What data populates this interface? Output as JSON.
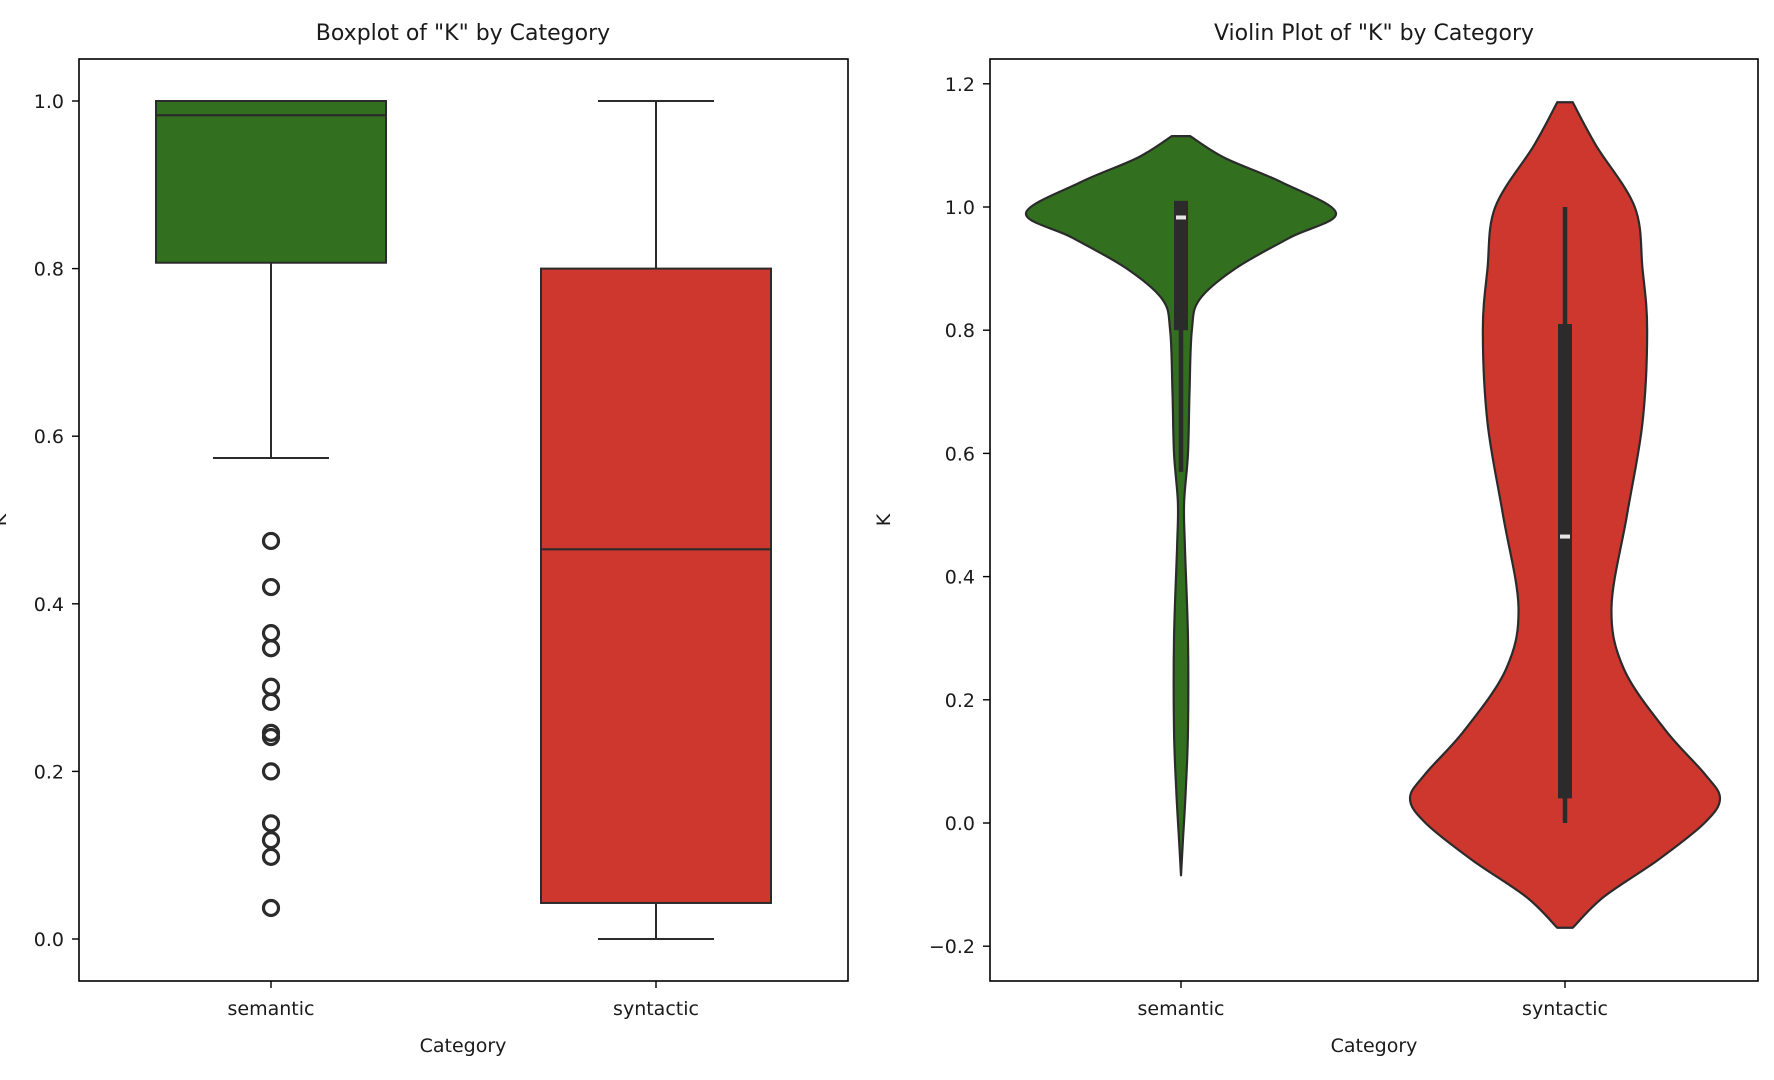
{
  "colors": {
    "semantic": "#32701f",
    "syntactic": "#cd372e",
    "line": "#2b2b2b",
    "axis": "#000000",
    "median_mark": "#e6e6e6"
  },
  "chart_data": [
    {
      "type": "boxplot",
      "title": "Boxplot of \"K\" by Category",
      "xlabel": "Category",
      "ylabel": "K",
      "categories": [
        "semantic",
        "syntactic"
      ],
      "ylim": [
        -0.05,
        1.05
      ],
      "yticks": [
        0.0,
        0.2,
        0.4,
        0.6,
        0.8,
        1.0
      ],
      "ytick_labels": [
        "0.0",
        "0.2",
        "0.4",
        "0.6",
        "0.8",
        "1.0"
      ],
      "grid": false,
      "series": [
        {
          "name": "semantic",
          "whisker_low": 0.574,
          "q1": 0.807,
          "median": 0.983,
          "q3": 1.0,
          "whisker_high": 1.0,
          "outliers": [
            0.475,
            0.42,
            0.365,
            0.347,
            0.301,
            0.283,
            0.246,
            0.241,
            0.2,
            0.138,
            0.118,
            0.098,
            0.037
          ]
        },
        {
          "name": "syntactic",
          "whisker_low": 0.0,
          "q1": 0.043,
          "median": 0.465,
          "q3": 0.8,
          "whisker_high": 1.0,
          "outliers": []
        }
      ]
    },
    {
      "type": "violin",
      "title": "Violin Plot of \"K\" by Category",
      "xlabel": "Category",
      "ylabel": "K",
      "categories": [
        "semantic",
        "syntactic"
      ],
      "ylim": [
        -0.23,
        1.25
      ],
      "yticks": [
        -0.2,
        0.0,
        0.2,
        0.4,
        0.6,
        0.8,
        1.0,
        1.2
      ],
      "ytick_labels": [
        "−0.2",
        "0.0",
        "0.2",
        "0.4",
        "0.6",
        "0.8",
        "1.0",
        "1.2"
      ],
      "grid": false,
      "series": [
        {
          "name": "semantic",
          "kde_range": [
            -0.085,
            1.115
          ],
          "inner_box": {
            "q1": 0.8,
            "median": 0.983,
            "q3": 1.01
          },
          "whisker": [
            0.57,
            1.0
          ],
          "density_profile": [
            [
              1.115,
              0.06
            ],
            [
              1.08,
              0.28
            ],
            [
              1.04,
              0.65
            ],
            [
              0.99,
              1.0
            ],
            [
              0.95,
              0.7
            ],
            [
              0.9,
              0.35
            ],
            [
              0.85,
              0.12
            ],
            [
              0.8,
              0.07
            ],
            [
              0.7,
              0.055
            ],
            [
              0.6,
              0.045
            ],
            [
              0.52,
              0.02
            ],
            [
              0.45,
              0.025
            ],
            [
              0.3,
              0.045
            ],
            [
              0.15,
              0.045
            ],
            [
              0.05,
              0.03
            ],
            [
              -0.03,
              0.012
            ],
            [
              -0.085,
              0.0
            ]
          ]
        },
        {
          "name": "syntactic",
          "kde_range": [
            -0.17,
            1.17
          ],
          "inner_box": {
            "q1": 0.04,
            "median": 0.465,
            "q3": 0.81
          },
          "whisker": [
            0.0,
            1.0
          ],
          "density_profile": [
            [
              1.17,
              0.05
            ],
            [
              1.1,
              0.2
            ],
            [
              1.0,
              0.45
            ],
            [
              0.9,
              0.5
            ],
            [
              0.8,
              0.53
            ],
            [
              0.65,
              0.5
            ],
            [
              0.5,
              0.4
            ],
            [
              0.35,
              0.3
            ],
            [
              0.25,
              0.38
            ],
            [
              0.15,
              0.65
            ],
            [
              0.08,
              0.9
            ],
            [
              0.04,
              1.0
            ],
            [
              0.0,
              0.9
            ],
            [
              -0.06,
              0.6
            ],
            [
              -0.12,
              0.25
            ],
            [
              -0.17,
              0.05
            ]
          ]
        }
      ]
    }
  ]
}
